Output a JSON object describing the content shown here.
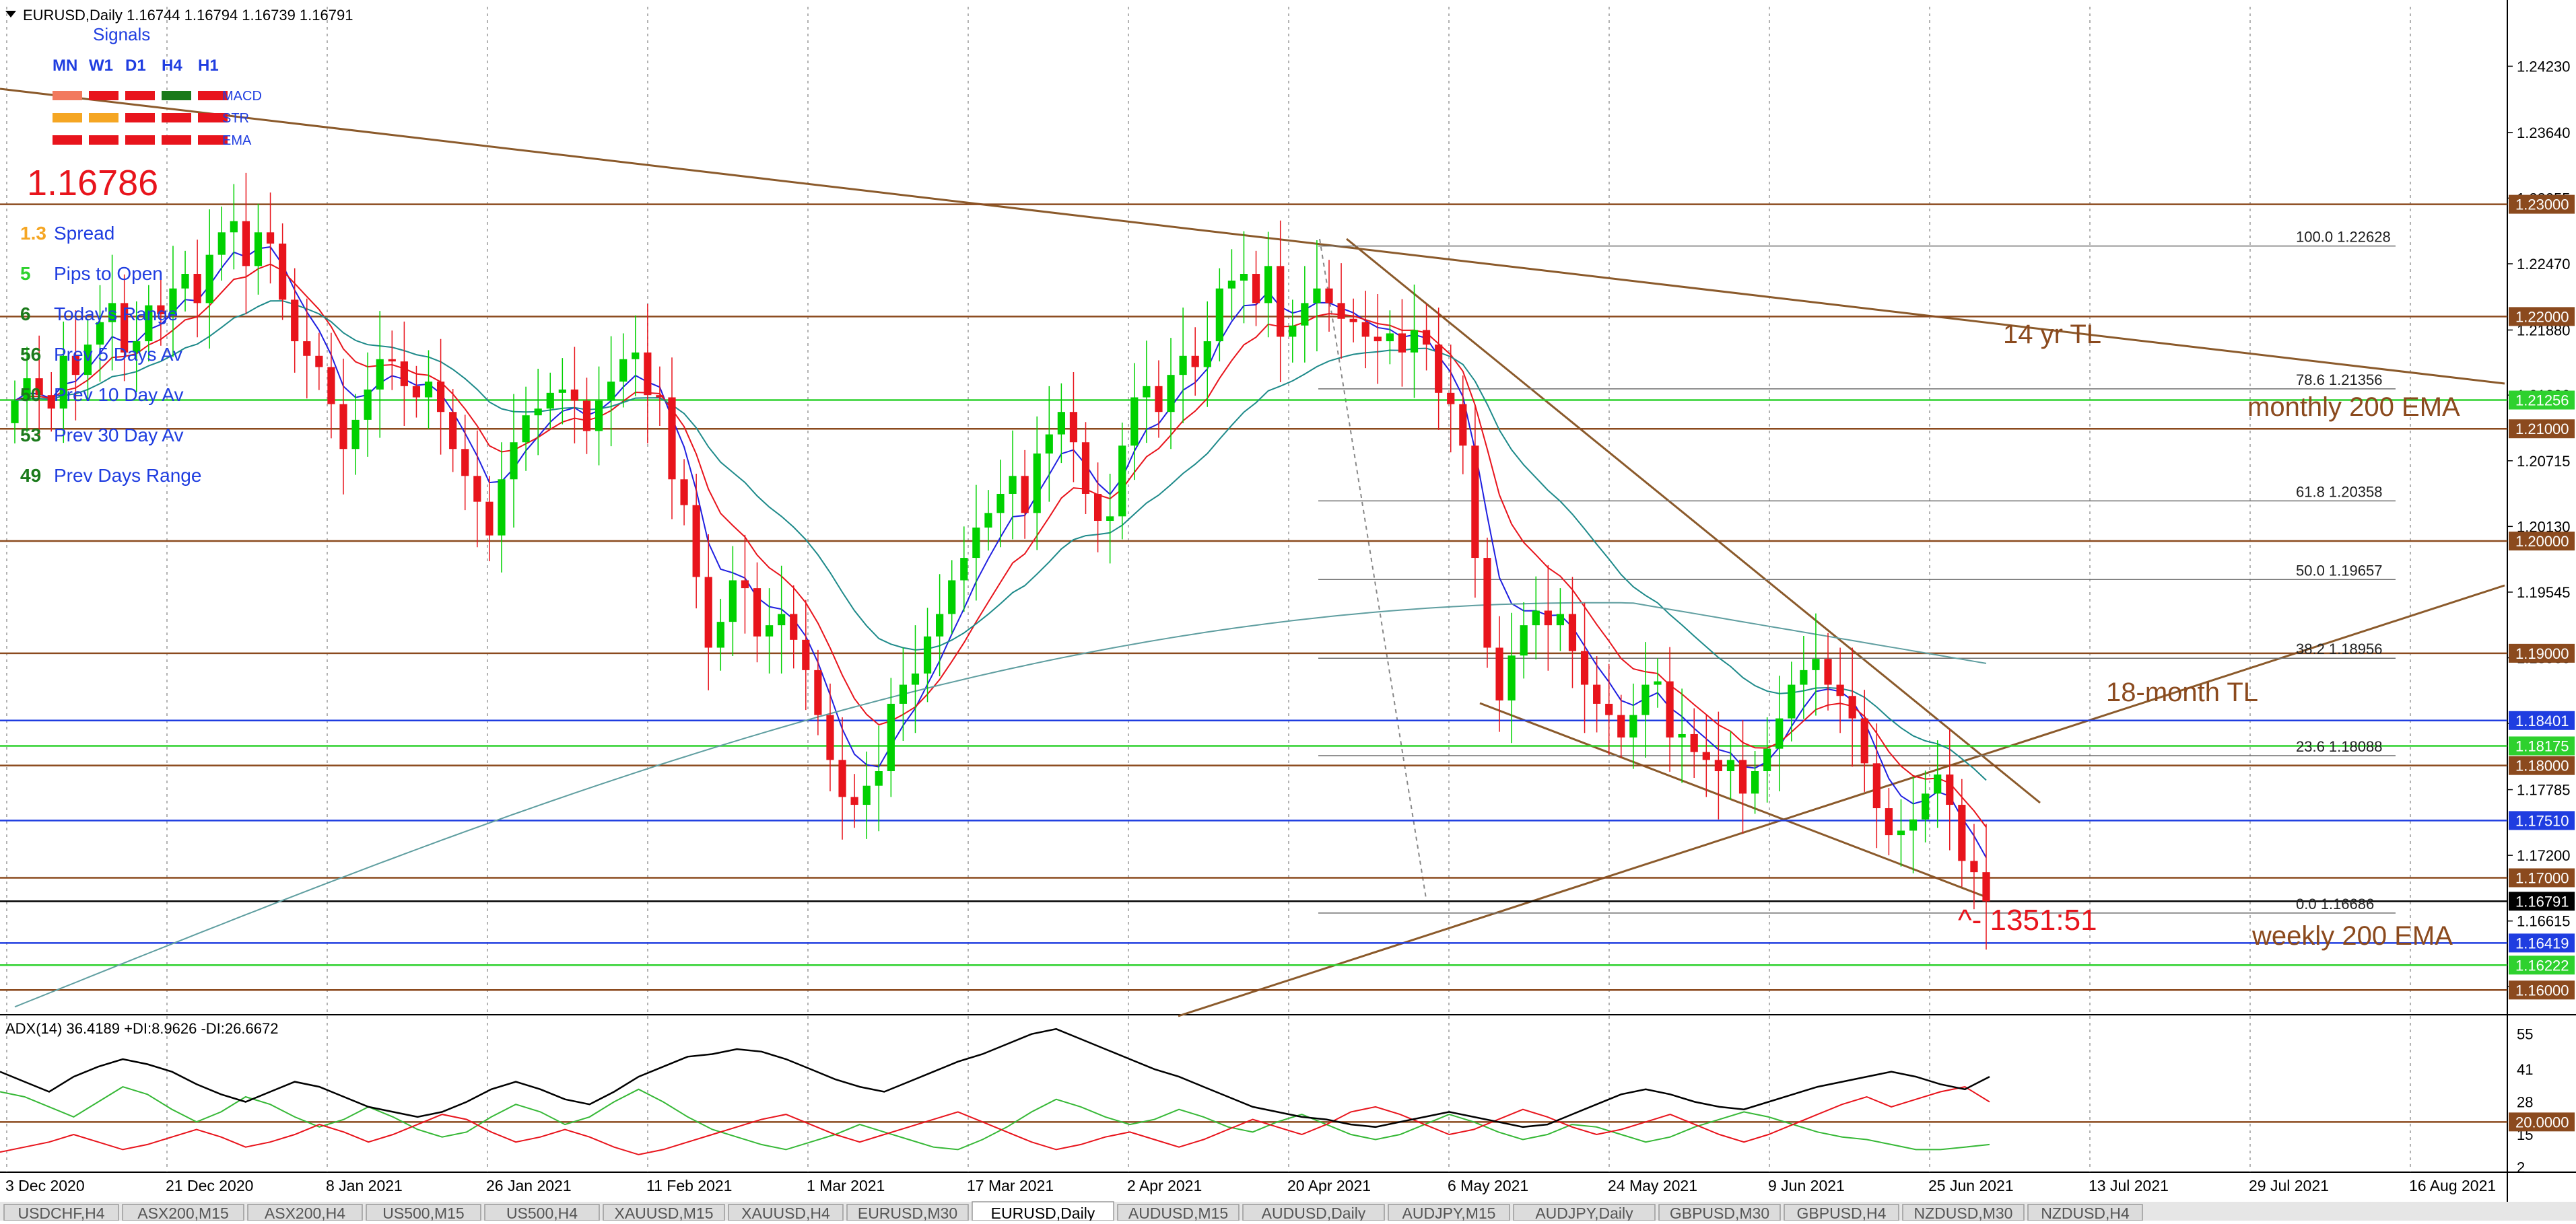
{
  "window": {
    "title": "EURUSD,Daily  1.16744 1.16794 1.16739 1.16791"
  },
  "panel": {
    "signals_title": "Signals",
    "timeframes": [
      "MN",
      "W1",
      "D1",
      "H4",
      "H1"
    ],
    "indicator_rows": [
      {
        "name": "MACD",
        "colors": [
          "#f27a5e",
          "#e8141c",
          "#e8141c",
          "#1b7a1b",
          "#e8141c"
        ]
      },
      {
        "name": "STR",
        "colors": [
          "#f5a623",
          "#f5a623",
          "#e8141c",
          "#e8141c",
          "#e8141c"
        ]
      },
      {
        "name": "EMA",
        "colors": [
          "#e8141c",
          "#e8141c",
          "#e8141c",
          "#e8141c",
          "#e8141c"
        ]
      }
    ],
    "price": "1.16786",
    "stats": [
      {
        "value": "1.3",
        "label": "Spread",
        "color": "#f5a623"
      },
      {
        "value": "5",
        "label": "Pips to Open",
        "color": "#2ed12e"
      },
      {
        "value": "6",
        "label": "Today's Range",
        "color": "#1b7a1b"
      },
      {
        "value": "56",
        "label": "Prev 5 Days Av",
        "color": "#1b7a1b"
      },
      {
        "value": "50",
        "label": "Prev 10 Day Av",
        "color": "#1b7a1b"
      },
      {
        "value": "53",
        "label": "Prev 30 Day Av",
        "color": "#1b7a1b"
      },
      {
        "value": "49",
        "label": "Prev Days Range",
        "color": "#1b7a1b"
      }
    ]
  },
  "annotations": {
    "tl14": "14 yr TL",
    "monthly_ema": "monthly 200 EMA",
    "tl18": "18-month TL",
    "weekly_ema": "weekly 200 EMA",
    "pips": "^- 1351:51"
  },
  "chart_data": {
    "type": "candlestick",
    "symbol": "EURUSD",
    "timeframe": "Daily",
    "ohlc": {
      "open": 1.16744,
      "high": 1.16794,
      "low": 1.16739,
      "close": 1.16791
    },
    "ylim": [
      1.1578,
      1.2476
    ],
    "y_ticks": [
      "1.24230",
      "1.23640",
      "1.23055",
      "1.22470",
      "1.21880",
      "1.21300",
      "1.20715",
      "1.20130",
      "1.19545",
      "1.18960",
      "1.18375",
      "1.17785",
      "1.17200",
      "1.16615",
      "1.16030"
    ],
    "x_ticks": [
      "3 Dec 2020",
      "21 Dec 2020",
      "8 Jan 2021",
      "26 Jan 2021",
      "11 Feb 2021",
      "1 Mar 2021",
      "17 Mar 2021",
      "2 Apr 2021",
      "20 Apr 2021",
      "6 May 2021",
      "24 May 2021",
      "9 Jun 2021",
      "25 Jun 2021",
      "13 Jul 2021",
      "29 Jul 2021",
      "16 Aug 2021"
    ],
    "closes": [
      1.2125,
      1.2145,
      1.213,
      1.2118,
      1.2165,
      1.2148,
      1.2175,
      1.2195,
      1.2212,
      1.2168,
      1.2178,
      1.221,
      1.2202,
      1.2225,
      1.2238,
      1.2212,
      1.2255,
      1.2275,
      1.2285,
      1.2245,
      1.2275,
      1.2265,
      1.2215,
      1.2178,
      1.2165,
      1.2155,
      1.2122,
      1.2082,
      1.2108,
      1.2135,
      1.2162,
      1.216,
      1.2138,
      1.2128,
      1.2142,
      1.2115,
      1.2082,
      1.2058,
      1.2035,
      1.2005,
      1.2055,
      1.2088,
      1.2112,
      1.2118,
      1.2132,
      1.2135,
      1.2125,
      1.2098,
      1.2125,
      1.2142,
      1.2162,
      1.2168,
      1.213,
      1.2128,
      1.2055,
      1.2032,
      1.1968,
      1.1905,
      1.1928,
      1.1965,
      1.1958,
      1.1915,
      1.1925,
      1.1935,
      1.1912,
      1.1885,
      1.1845,
      1.1805,
      1.1772,
      1.1765,
      1.1782,
      1.1795,
      1.1855,
      1.1872,
      1.1882,
      1.1915,
      1.1935,
      1.1965,
      1.1985,
      1.2012,
      1.2025,
      1.2042,
      1.2058,
      1.2025,
      1.2078,
      1.2095,
      1.2115,
      1.2088,
      1.2042,
      1.2018,
      1.2022,
      1.2085,
      1.2128,
      1.2138,
      1.2115,
      1.2148,
      1.2165,
      1.2155,
      1.2178,
      1.2225,
      1.2232,
      1.2238,
      1.2212,
      1.2245,
      1.2182,
      1.2192,
      1.2212,
      1.2225,
      1.2212,
      1.2198,
      1.2195,
      1.2182,
      1.2178,
      1.2185,
      1.2168,
      1.2188,
      1.2175,
      1.2132,
      1.2122,
      1.2085,
      1.1985,
      1.1905,
      1.1858,
      1.1898,
      1.1925,
      1.1938,
      1.1925,
      1.1935,
      1.1902,
      1.1872,
      1.1855,
      1.1845,
      1.1825,
      1.1845,
      1.1872,
      1.1875,
      1.1825,
      1.1828,
      1.1812,
      1.1805,
      1.1795,
      1.1805,
      1.1775,
      1.1795,
      1.1815,
      1.1842,
      1.1872,
      1.1885,
      1.1895,
      1.1872,
      1.1862,
      1.1842,
      1.1802,
      1.1762,
      1.1738,
      1.1742,
      1.1752,
      1.1775,
      1.1792,
      1.1765,
      1.1715,
      1.1705,
      1.1679
    ],
    "levels": [
      {
        "price": 1.23,
        "label": "1.23000",
        "color": "#8b4a1e"
      },
      {
        "price": 1.22,
        "label": "1.22000",
        "color": "#8b4a1e"
      },
      {
        "price": 1.21256,
        "label": "1.21256",
        "color": "#2ed12e"
      },
      {
        "price": 1.21,
        "label": "1.21000",
        "color": "#8b4a1e"
      },
      {
        "price": 1.2,
        "label": "1.20000",
        "color": "#8b4a1e"
      },
      {
        "price": 1.19,
        "label": "1.19000",
        "color": "#8b4a1e"
      },
      {
        "price": 1.18401,
        "label": "1.18401",
        "color": "#1f3de0"
      },
      {
        "price": 1.18175,
        "label": "1.18175",
        "color": "#2ed12e"
      },
      {
        "price": 1.18,
        "label": "1.18000",
        "color": "#8b4a1e"
      },
      {
        "price": 1.1751,
        "label": "1.17510",
        "color": "#1f3de0"
      },
      {
        "price": 1.17,
        "label": "1.17000",
        "color": "#8b4a1e"
      },
      {
        "price": 1.16791,
        "label": "1.16791",
        "color": "#000000"
      },
      {
        "price": 1.16419,
        "label": "1.16419",
        "color": "#1f3de0"
      },
      {
        "price": 1.16222,
        "label": "1.16222",
        "color": "#2ed12e"
      },
      {
        "price": 1.16,
        "label": "1.16000",
        "color": "#8b4a1e"
      }
    ],
    "fib": [
      {
        "pct": "100.0",
        "price": 1.22628,
        "label": "1.22628"
      },
      {
        "pct": "78.6",
        "price": 1.21356,
        "label": "1.21356"
      },
      {
        "pct": "61.8",
        "price": 1.20358,
        "label": "1.20358"
      },
      {
        "pct": "50.0",
        "price": 1.19657,
        "label": "1.19657"
      },
      {
        "pct": "38.2",
        "price": 1.18956,
        "label": "1.18956"
      },
      {
        "pct": "23.6",
        "price": 1.18088,
        "label": "1.18088"
      },
      {
        "pct": "0.0",
        "price": 1.16686,
        "label": "1.16686"
      }
    ],
    "adx": {
      "title": "ADX(14) 36.4189 +DI:8.9626 -DI:26.6672",
      "value": 36.4189,
      "plus_di": 8.9626,
      "minus_di": 26.6672,
      "ylim": [
        0,
        60
      ],
      "y_ticks": [
        "55",
        "41",
        "28",
        "15",
        "2"
      ],
      "level": 20,
      "level_label": "20.0000",
      "adx_values": [
        40,
        36,
        32,
        38,
        42,
        45,
        43,
        40,
        35,
        31,
        28,
        32,
        36,
        34,
        30,
        26,
        24,
        22,
        24,
        28,
        33,
        36,
        33,
        29,
        27,
        32,
        38,
        42,
        46,
        47,
        49,
        48,
        45,
        41,
        37,
        34,
        32,
        36,
        40,
        44,
        47,
        51,
        55,
        57,
        53,
        49,
        45,
        41,
        38,
        34,
        30,
        26,
        24,
        22,
        21,
        19,
        18,
        20,
        22,
        24,
        22,
        20,
        18,
        19,
        23,
        27,
        31,
        33,
        31,
        28,
        26,
        25,
        28,
        31,
        34,
        36,
        38,
        40,
        38,
        35,
        33,
        38
      ],
      "plus_values": [
        32,
        30,
        26,
        22,
        28,
        34,
        31,
        25,
        20,
        24,
        30,
        27,
        22,
        18,
        21,
        26,
        22,
        17,
        14,
        16,
        22,
        27,
        24,
        19,
        22,
        28,
        33,
        28,
        22,
        17,
        14,
        11,
        9,
        12,
        15,
        19,
        16,
        13,
        10,
        9,
        13,
        18,
        24,
        29,
        26,
        22,
        19,
        21,
        25,
        22,
        18,
        16,
        20,
        23,
        19,
        15,
        13,
        15,
        19,
        23,
        20,
        16,
        13,
        15,
        19,
        18,
        15,
        12,
        14,
        18,
        21,
        24,
        22,
        19,
        16,
        14,
        13,
        11,
        9,
        9,
        10,
        11
      ],
      "minus_values": [
        8,
        10,
        12,
        15,
        12,
        9,
        11,
        14,
        17,
        14,
        10,
        12,
        15,
        19,
        16,
        12,
        15,
        19,
        23,
        21,
        16,
        12,
        14,
        17,
        14,
        10,
        7,
        9,
        12,
        15,
        18,
        21,
        23,
        19,
        15,
        12,
        15,
        18,
        21,
        24,
        20,
        16,
        12,
        9,
        11,
        14,
        16,
        13,
        10,
        13,
        17,
        21,
        18,
        15,
        19,
        24,
        26,
        23,
        19,
        15,
        17,
        21,
        25,
        22,
        18,
        15,
        17,
        20,
        23,
        19,
        15,
        12,
        15,
        19,
        23,
        27,
        30,
        26,
        29,
        32,
        34,
        28
      ]
    }
  },
  "tabs": [
    {
      "label": "USDCHF,H4",
      "active": false
    },
    {
      "label": "ASX200,M15",
      "active": false
    },
    {
      "label": "ASX200,H4",
      "active": false
    },
    {
      "label": "US500,M15",
      "active": false
    },
    {
      "label": "US500,H4",
      "active": false
    },
    {
      "label": "XAUUSD,M15",
      "active": false
    },
    {
      "label": "XAUUSD,H4",
      "active": false
    },
    {
      "label": "EURUSD,M30",
      "active": false
    },
    {
      "label": "EURUSD,Daily",
      "active": true
    },
    {
      "label": "AUDUSD,M15",
      "active": false
    },
    {
      "label": "AUDUSD,Daily",
      "active": false
    },
    {
      "label": "AUDJPY,M15",
      "active": false
    },
    {
      "label": "AUDJPY,Daily",
      "active": false
    },
    {
      "label": "GBPUSD,M30",
      "active": false
    },
    {
      "label": "GBPUSD,H4",
      "active": false
    },
    {
      "label": "NZDUSD,M30",
      "active": false
    },
    {
      "label": "NZDUSD,H4",
      "active": false
    }
  ]
}
